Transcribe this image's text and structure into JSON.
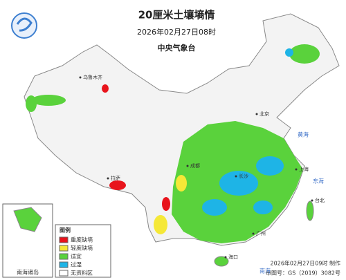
{
  "header": {
    "title": "20厘米土壤墒情",
    "date": "2026年02月27日08时",
    "agency": "中央气象台"
  },
  "legend": {
    "title": "图例",
    "items": [
      {
        "label": "重度缺墒",
        "color": "#e8141c"
      },
      {
        "label": "轻度缺墒",
        "color": "#f5e837"
      },
      {
        "label": "适宜",
        "color": "#5ad23c"
      },
      {
        "label": "过湿",
        "color": "#1eb4e6"
      },
      {
        "label": "无资料区",
        "color": "#ffffff"
      }
    ]
  },
  "places": [
    "乌鲁木齐",
    "拉萨",
    "北京",
    "上海",
    "广州",
    "海口",
    "台北",
    "长沙",
    "成都"
  ],
  "seas": [
    "黄海",
    "东海",
    "南海"
  ],
  "inset": {
    "label": "南海诸岛"
  },
  "footer": {
    "made": "2026年02月27日09时 制作",
    "approval": "审图号：GS（2019）3082号"
  }
}
